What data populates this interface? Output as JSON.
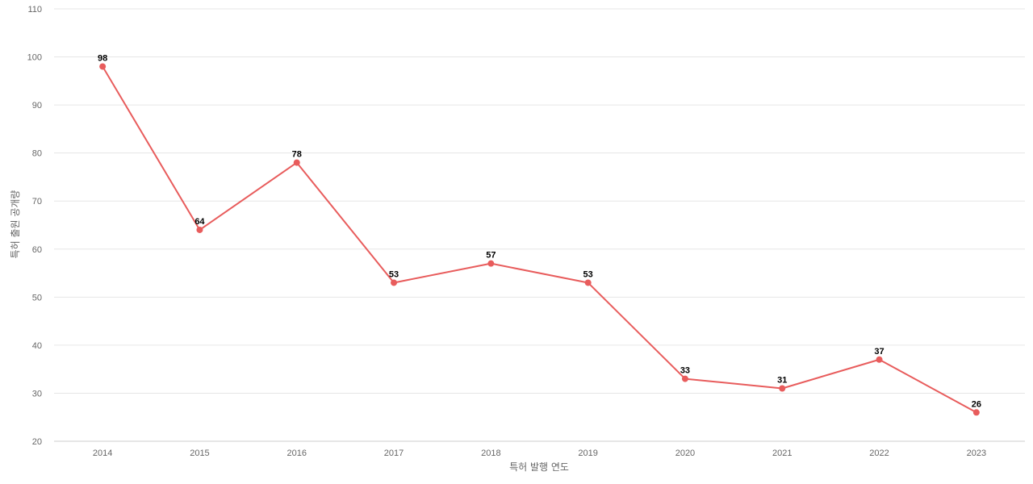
{
  "chart_data": {
    "type": "line",
    "title": "",
    "xlabel": "특허 발행 연도",
    "ylabel": "특허 출원 공개량",
    "categories": [
      "2014",
      "2015",
      "2016",
      "2017",
      "2018",
      "2019",
      "2020",
      "2021",
      "2022",
      "2023"
    ],
    "series": [
      {
        "values": [
          98,
          64,
          78,
          53,
          57,
          53,
          33,
          31,
          37,
          26
        ],
        "color": "#e85c5c"
      }
    ],
    "ylim": [
      20,
      110
    ],
    "yticks": [
      20,
      30,
      40,
      50,
      60,
      70,
      80,
      90,
      100,
      110
    ],
    "grid": true,
    "data_labels": true,
    "legend": "none"
  }
}
